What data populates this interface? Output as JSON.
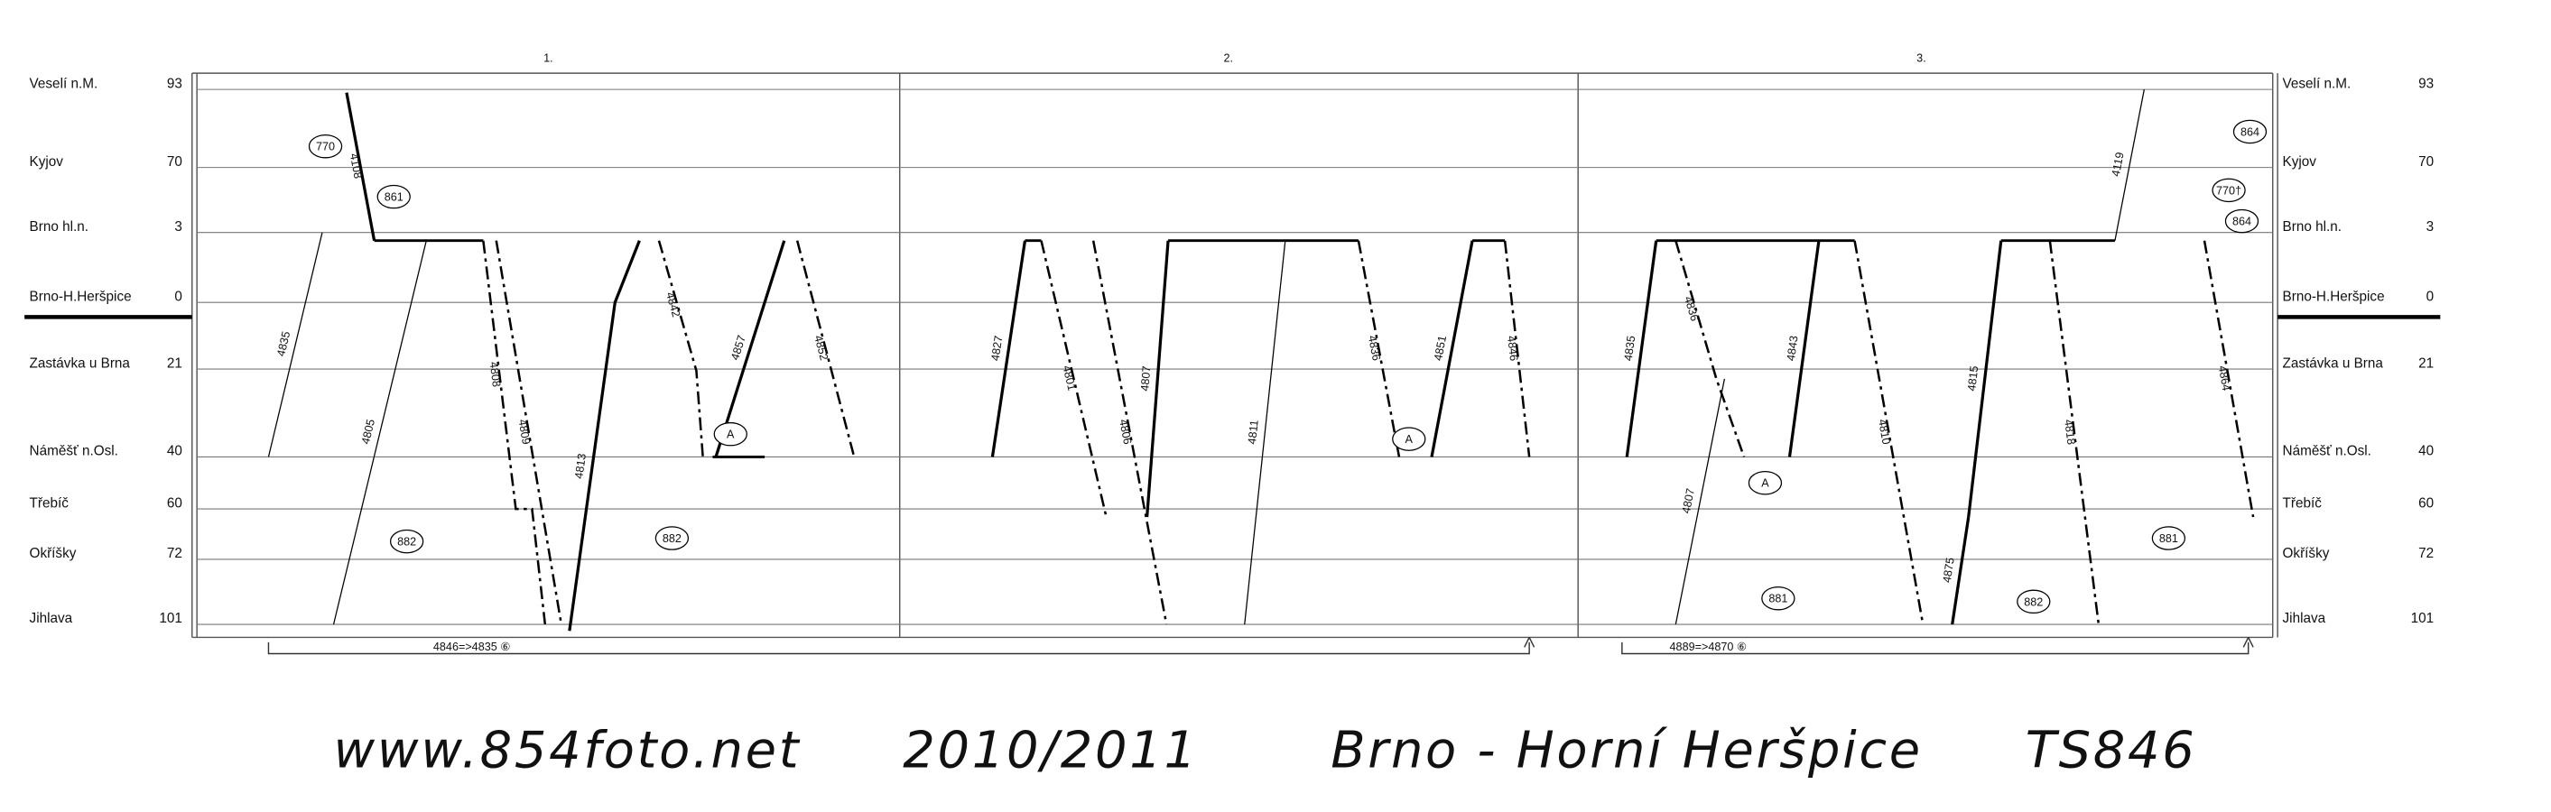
{
  "periods": [
    "1.",
    "2.",
    "3."
  ],
  "stations": [
    {
      "name": "Veselí n.M.",
      "km": 93
    },
    {
      "name": "Kyjov",
      "km": 70
    },
    {
      "name": "Brno hl.n.",
      "km": 3
    },
    {
      "name": "Brno-H.Heršpice",
      "km": 0
    },
    {
      "name": "Zastávka u Brna",
      "km": 21
    },
    {
      "name": "Náměšť n.Osl.",
      "km": 40
    },
    {
      "name": "Třebíč",
      "km": 60
    },
    {
      "name": "Okříšky",
      "km": 72
    },
    {
      "name": "Jihlava",
      "km": 101
    }
  ],
  "trains": [
    "4835",
    "4108",
    "4805",
    "4808",
    "4809",
    "4813",
    "4842",
    "4857",
    "4852",
    "4827",
    "4801",
    "4806",
    "4807",
    "4811",
    "4836",
    "4851",
    "4846",
    "4835",
    "4836",
    "4807",
    "4843",
    "4810",
    "4875",
    "4815",
    "4818",
    "4119",
    "4864"
  ],
  "circuits": [
    "770",
    "861",
    "882",
    "882",
    "A",
    "A",
    "A",
    "881",
    "882",
    "881",
    "864",
    "770†",
    "864"
  ],
  "notes": [
    "4846=>4835 ⑥",
    "4889=>4870 ⑥"
  ],
  "footer": {
    "site": "www.854foto.net",
    "season": "2010/2011",
    "place": "Brno - Horní Heršpice",
    "ts": "TS846"
  }
}
